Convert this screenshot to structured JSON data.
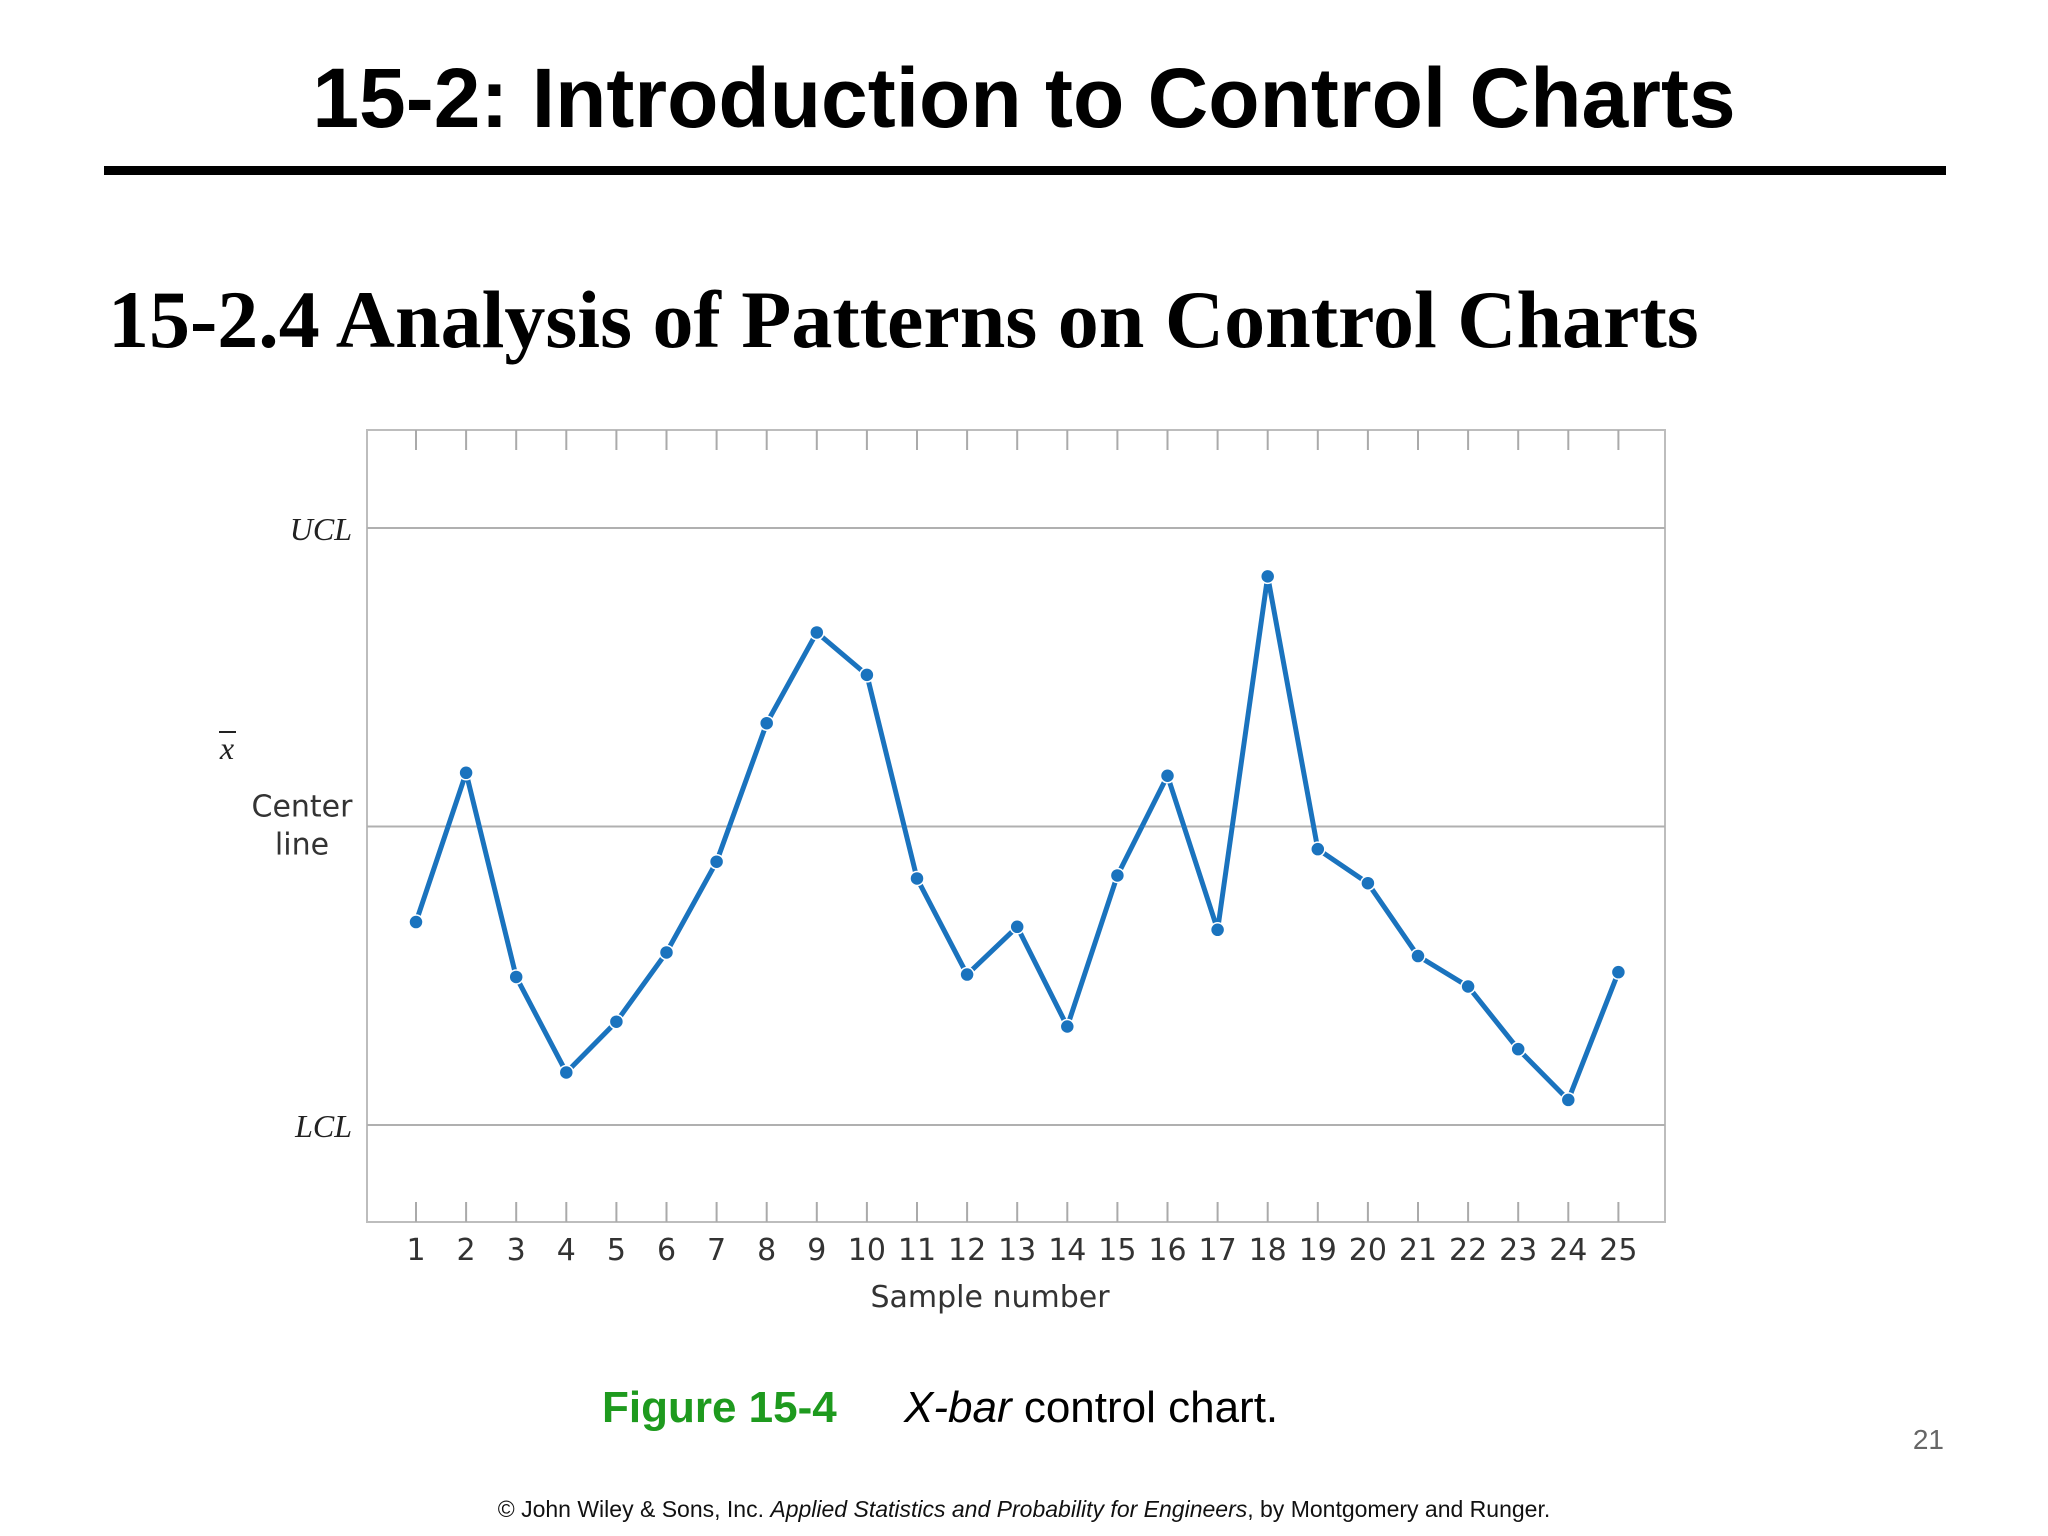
{
  "slide": {
    "title": "15-2: Introduction to Control Charts",
    "section_heading": "15-2.4 Analysis of Patterns on Control Charts",
    "page_number": "21"
  },
  "caption": {
    "figure_number": "Figure 15-4",
    "italic_text": "X-bar",
    "text": " control chart."
  },
  "footer": {
    "prefix": "© John Wiley & Sons, Inc.  ",
    "book_title": "Applied Statistics and Probability for Engineers",
    "suffix": ", by Montgomery and Runger."
  },
  "chart_data": {
    "type": "line",
    "title": "",
    "xlabel": "Sample number",
    "ylabel": "x̄",
    "y_scale": "normalized: LCL = 0, Center line = 0.5, UCL = 1",
    "ylim": [
      -0.165,
      1.165
    ],
    "x": [
      1,
      2,
      3,
      4,
      5,
      6,
      7,
      8,
      9,
      10,
      11,
      12,
      13,
      14,
      15,
      16,
      17,
      18,
      19,
      20,
      21,
      22,
      23,
      24,
      25
    ],
    "series": [
      {
        "name": "",
        "color": "#1a73be",
        "values": [
          0.34,
          0.59,
          0.248,
          0.088,
          0.173,
          0.289,
          0.441,
          0.673,
          0.825,
          0.754,
          0.413,
          0.252,
          0.332,
          0.165,
          0.418,
          0.585,
          0.327,
          0.919,
          0.462,
          0.405,
          0.283,
          0.232,
          0.127,
          0.042,
          0.256
        ]
      }
    ],
    "reference_lines": [
      {
        "label": "UCL",
        "value": 1
      },
      {
        "label": "Center line",
        "value": 0.5
      },
      {
        "label": "LCL",
        "value": 0
      }
    ],
    "grid": false,
    "legend": "none"
  }
}
